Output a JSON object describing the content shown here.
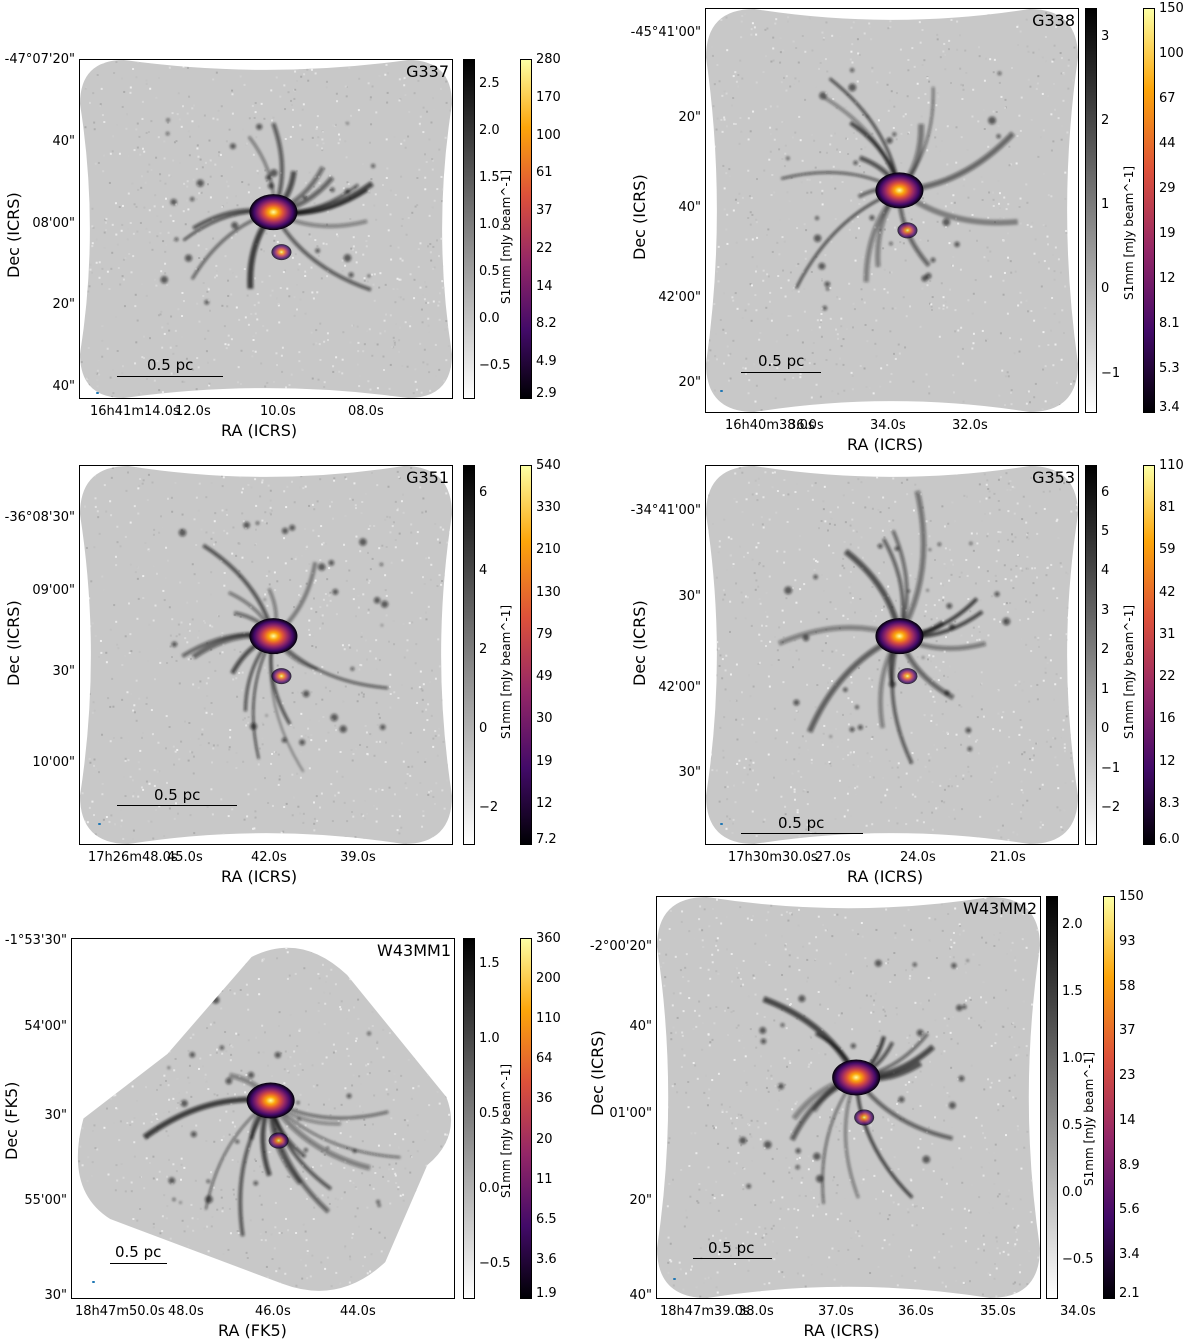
{
  "colors": {
    "map_background": "#c8c8c8",
    "emission_dark": "#111111",
    "inferno_stops": [
      "#000004",
      "#420a68",
      "#932667",
      "#dd513a",
      "#fca50a",
      "#fcffa4"
    ],
    "gray_stops": [
      "#ffffff",
      "#000000"
    ],
    "beam_marker": "#1f77b4"
  },
  "panels": [
    {
      "id": "g337",
      "name": "G337",
      "scale_bar": "0.5 pc",
      "dec_ticks": [
        "-47°07'20\"",
        "40\"",
        "08'00\"",
        "20\"",
        "40\""
      ],
      "ra_ticks": [
        "16h41m14.0s",
        "12.0s",
        "10.0s",
        "08.0s"
      ],
      "xlabel": "RA (ICRS)",
      "ylabel": "Dec (ICRS)",
      "gray_ticks": [
        "2.5",
        "2.0",
        "1.5",
        "1.0",
        "0.5",
        "0.0",
        "−0.5"
      ],
      "color_ticks": [
        "280",
        "170",
        "100",
        "61",
        "37",
        "22",
        "14",
        "8.2",
        "4.9",
        "2.9"
      ],
      "cbar_label": "S1mm [mJy beam^-1]"
    },
    {
      "id": "g338",
      "name": "G338",
      "scale_bar": "0.5 pc",
      "dec_ticks": [
        "-45°41'00\"",
        "20\"",
        "40\"",
        "42'00\"",
        "20\""
      ],
      "ra_ticks": [
        "16h40m38.0s",
        "36.0s",
        "34.0s",
        "32.0s"
      ],
      "xlabel": "RA (ICRS)",
      "ylabel": "Dec (ICRS)",
      "gray_ticks": [
        "3",
        "2",
        "1",
        "0",
        "−1"
      ],
      "color_ticks": [
        "150",
        "100",
        "67",
        "44",
        "29",
        "19",
        "12",
        "8.1",
        "5.3",
        "3.4"
      ],
      "cbar_label": "S1mm [mJy beam^-1]"
    },
    {
      "id": "g351",
      "name": "G351",
      "scale_bar": "0.5 pc",
      "dec_ticks": [
        "-36°08'30\"",
        "09'00\"",
        "30\"",
        "10'00\""
      ],
      "ra_ticks": [
        "17h26m48.0s",
        "45.0s",
        "42.0s",
        "39.0s"
      ],
      "xlabel": "RA (ICRS)",
      "ylabel": "Dec (ICRS)",
      "gray_ticks": [
        "6",
        "4",
        "2",
        "0",
        "−2"
      ],
      "color_ticks": [
        "540",
        "330",
        "210",
        "130",
        "79",
        "49",
        "30",
        "19",
        "12",
        "7.2"
      ],
      "cbar_label": "S1mm [mJy beam^-1]"
    },
    {
      "id": "g353",
      "name": "G353",
      "scale_bar": "0.5 pc",
      "dec_ticks": [
        "-34°41'00\"",
        "30\"",
        "42'00\"",
        "30\""
      ],
      "ra_ticks": [
        "17h30m30.0s",
        "27.0s",
        "24.0s",
        "21.0s"
      ],
      "xlabel": "RA (ICRS)",
      "ylabel": "Dec (ICRS)",
      "gray_ticks": [
        "6",
        "5",
        "4",
        "3",
        "2",
        "1",
        "0",
        "−1",
        "−2"
      ],
      "color_ticks": [
        "110",
        "81",
        "59",
        "42",
        "31",
        "22",
        "16",
        "12",
        "8.3",
        "6.0"
      ],
      "cbar_label": "S1mm [mJy beam^-1]"
    },
    {
      "id": "w43mm1",
      "name": "W43MM1",
      "scale_bar": "0.5 pc",
      "dec_ticks": [
        "-1°53'30\"",
        "54'00\"",
        "30\"",
        "55'00\"",
        "30\""
      ],
      "ra_ticks": [
        "18h47m50.0s",
        "48.0s",
        "46.0s",
        "44.0s"
      ],
      "xlabel": "RA (FK5)",
      "ylabel": "Dec (FK5)",
      "gray_ticks": [
        "1.5",
        "1.0",
        "0.5",
        "0.0",
        "−0.5"
      ],
      "color_ticks": [
        "360",
        "200",
        "110",
        "64",
        "36",
        "20",
        "11",
        "6.5",
        "3.6",
        "1.9"
      ],
      "cbar_label": "S1mm [mJy beam^-1]"
    },
    {
      "id": "w43mm2",
      "name": "W43MM2",
      "scale_bar": "0.5 pc",
      "dec_ticks": [
        "-2°00'20\"",
        "40\"",
        "01'00\"",
        "20\"",
        "40\""
      ],
      "ra_ticks": [
        "18h47m39.0s",
        "38.0s",
        "37.0s",
        "36.0s",
        "35.0s",
        "34.0s"
      ],
      "xlabel": "RA (ICRS)",
      "ylabel": "Dec (ICRS)",
      "gray_ticks": [
        "2.0",
        "1.5",
        "1.0",
        "0.5",
        "0.0",
        "−0.5"
      ],
      "color_ticks": [
        "150",
        "93",
        "58",
        "37",
        "23",
        "14",
        "8.9",
        "5.6",
        "3.4",
        "2.1"
      ],
      "cbar_label": "S1mm [mJy beam^-1]"
    }
  ]
}
